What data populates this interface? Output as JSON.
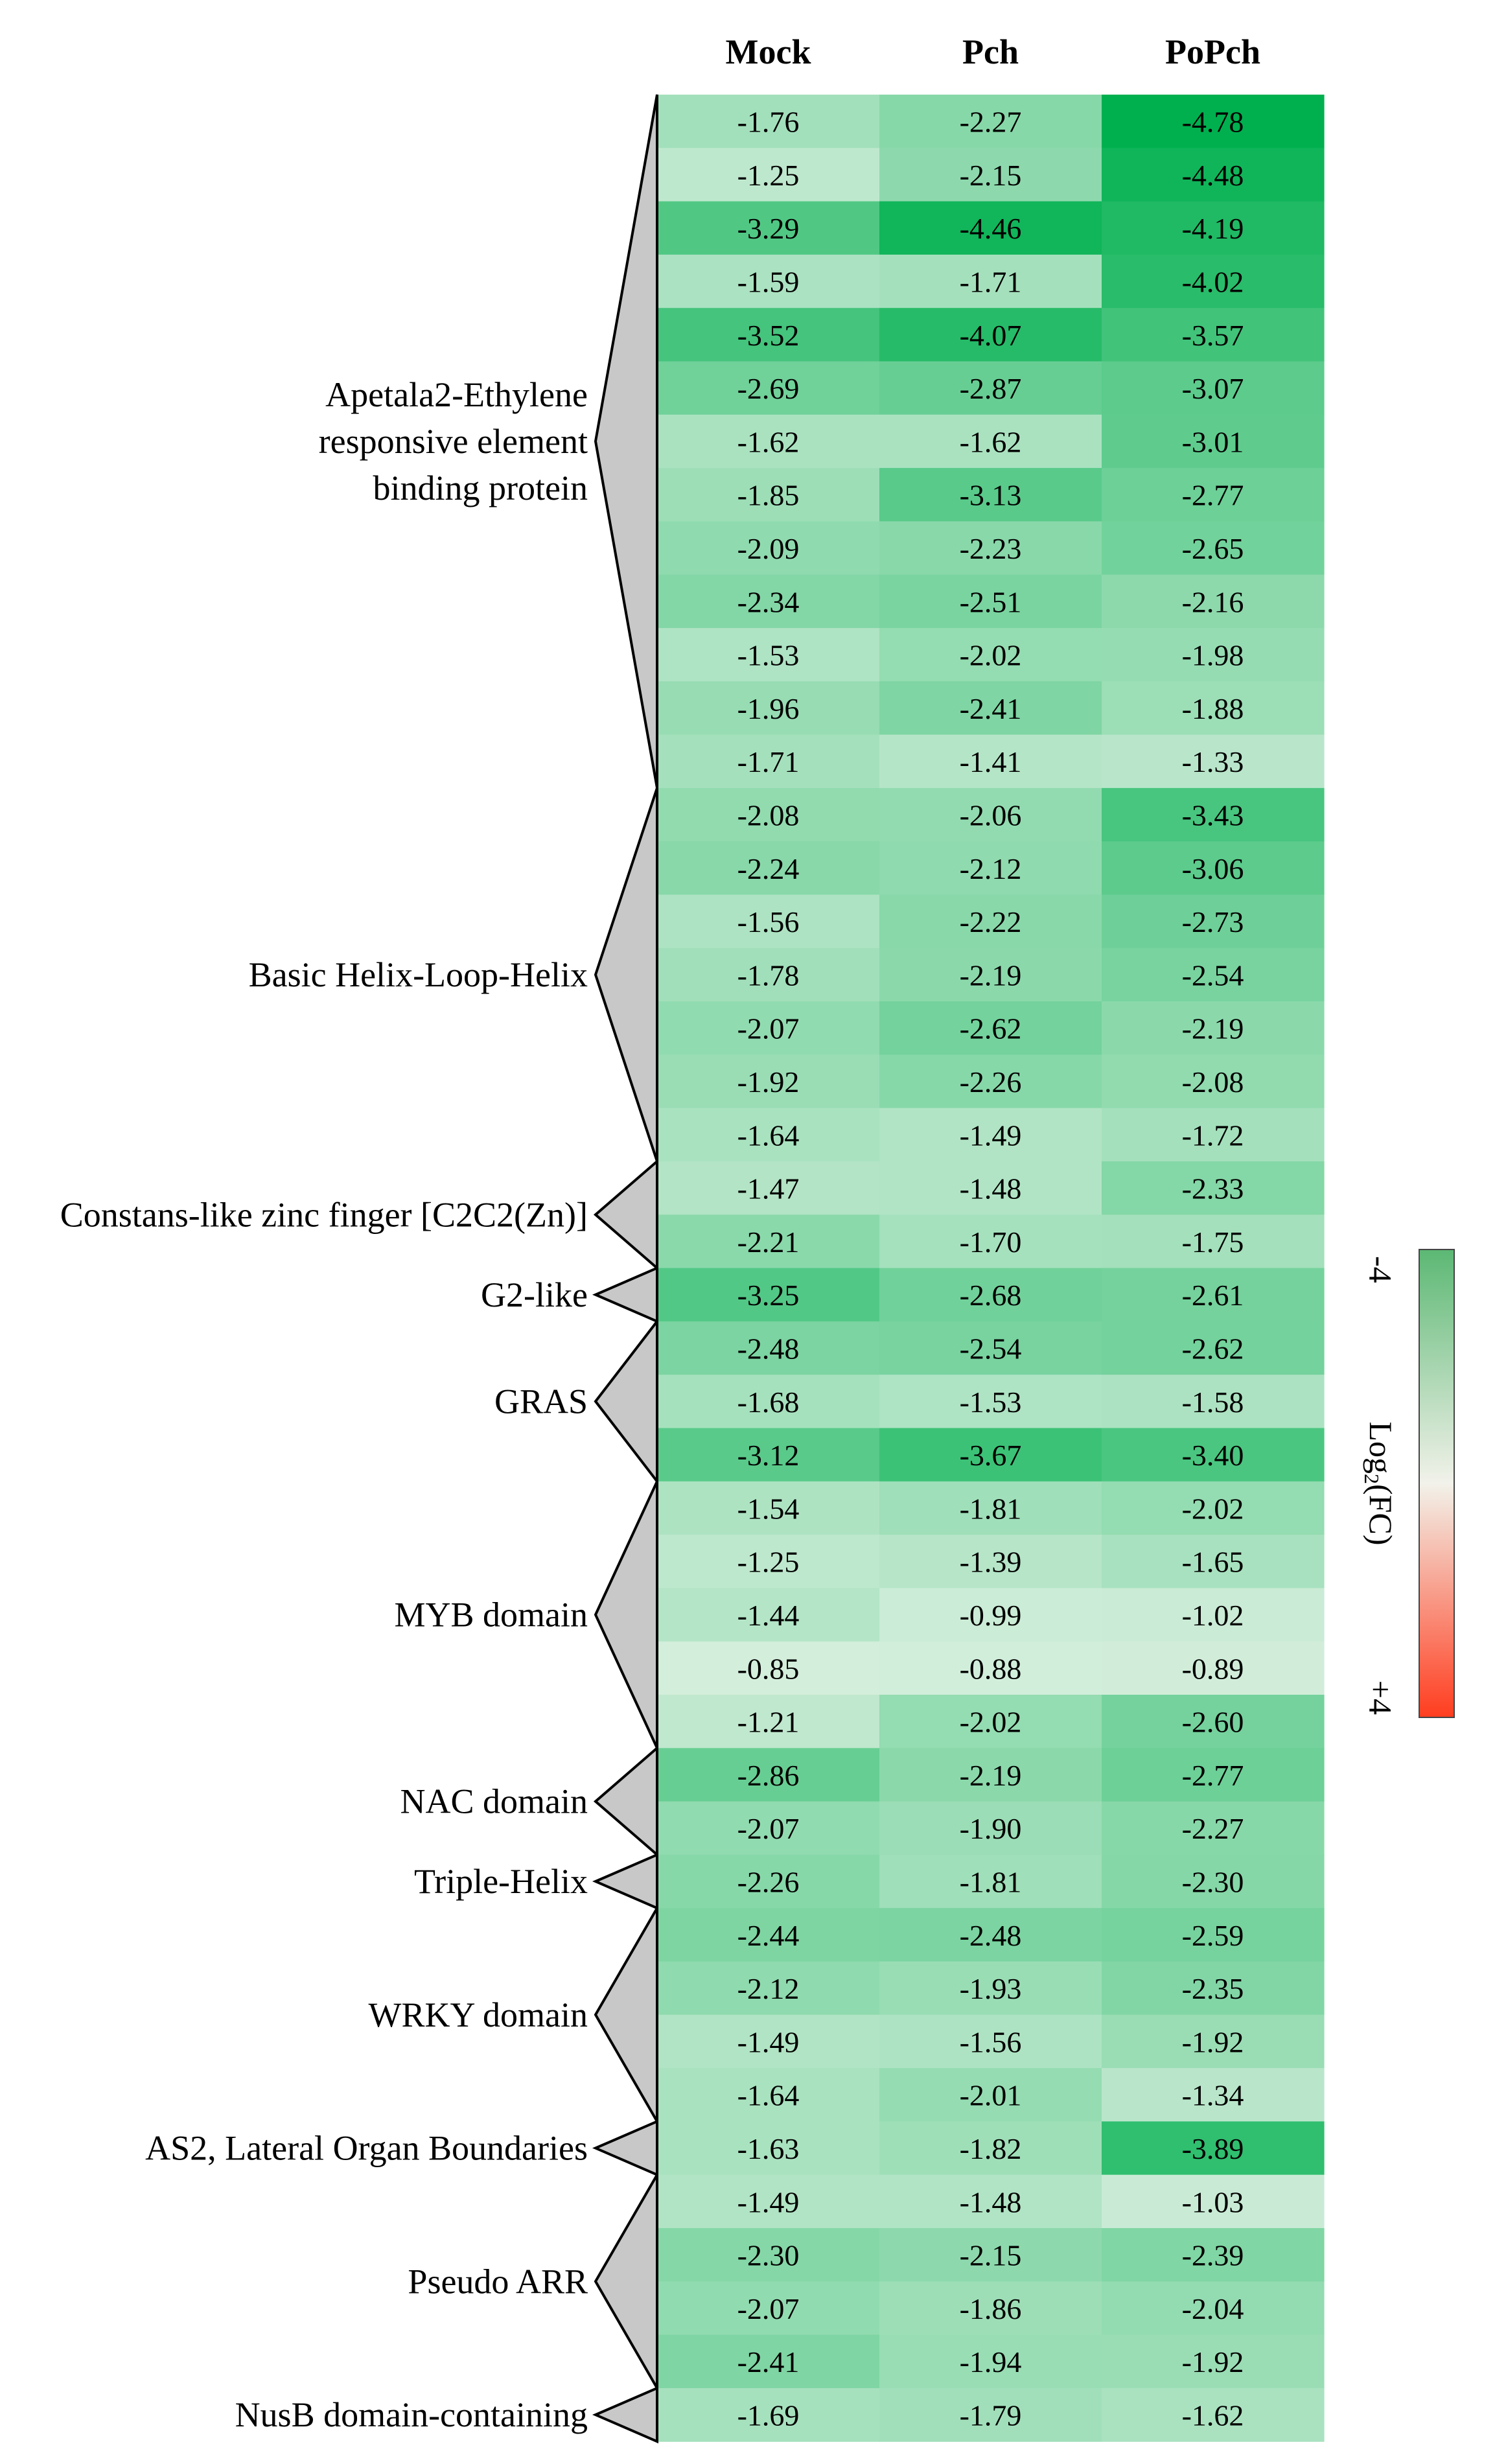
{
  "chart_data": {
    "type": "heatmap",
    "columns": [
      "Mock",
      "Pch",
      "PoPch"
    ],
    "rows": [
      [
        -1.76,
        -2.27,
        -4.78
      ],
      [
        -1.25,
        -2.15,
        -4.48
      ],
      [
        -3.29,
        -4.46,
        -4.19
      ],
      [
        -1.59,
        -1.71,
        -4.02
      ],
      [
        -3.52,
        -4.07,
        -3.57
      ],
      [
        -2.69,
        -2.87,
        -3.07
      ],
      [
        -1.62,
        -1.62,
        -3.01
      ],
      [
        -1.85,
        -3.13,
        -2.77
      ],
      [
        -2.09,
        -2.23,
        -2.65
      ],
      [
        -2.34,
        -2.51,
        -2.16
      ],
      [
        -1.53,
        -2.02,
        -1.98
      ],
      [
        -1.96,
        -2.41,
        -1.88
      ],
      [
        -1.71,
        -1.41,
        -1.33
      ],
      [
        -2.08,
        -2.06,
        -3.43
      ],
      [
        -2.24,
        -2.12,
        -3.06
      ],
      [
        -1.56,
        -2.22,
        -2.73
      ],
      [
        -1.78,
        -2.19,
        -2.54
      ],
      [
        -2.07,
        -2.62,
        -2.19
      ],
      [
        -1.92,
        -2.26,
        -2.08
      ],
      [
        -1.64,
        -1.49,
        -1.72
      ],
      [
        -1.47,
        -1.48,
        -2.33
      ],
      [
        -2.21,
        -1.7,
        -1.75
      ],
      [
        -3.25,
        -2.68,
        -2.61
      ],
      [
        -2.48,
        -2.54,
        -2.62
      ],
      [
        -1.68,
        -1.53,
        -1.58
      ],
      [
        -3.12,
        -3.67,
        -3.4
      ],
      [
        -1.54,
        -1.81,
        -2.02
      ],
      [
        -1.25,
        -1.39,
        -1.65
      ],
      [
        -1.44,
        -0.99,
        -1.02
      ],
      [
        -0.85,
        -0.88,
        -0.89
      ],
      [
        -1.21,
        -2.02,
        -2.6
      ],
      [
        -2.86,
        -2.19,
        -2.77
      ],
      [
        -2.07,
        -1.9,
        -2.27
      ],
      [
        -2.26,
        -1.81,
        -2.3
      ],
      [
        -2.44,
        -2.48,
        -2.59
      ],
      [
        -2.12,
        -1.93,
        -2.35
      ],
      [
        -1.49,
        -1.56,
        -1.92
      ],
      [
        -1.64,
        -2.01,
        -1.34
      ],
      [
        -1.63,
        -1.82,
        -3.89
      ],
      [
        -1.49,
        -1.48,
        -1.03
      ],
      [
        -2.3,
        -2.15,
        -2.39
      ],
      [
        -2.07,
        -1.86,
        -2.04
      ],
      [
        -2.41,
        -1.94,
        -1.92
      ],
      [
        -1.69,
        -1.79,
        -1.62
      ]
    ],
    "groups": [
      {
        "label": [
          "Apetala2-Ethylene",
          "responsive element",
          "binding protein"
        ],
        "start": 0,
        "end": 12
      },
      {
        "label": [
          "Basic Helix-Loop-Helix"
        ],
        "start": 13,
        "end": 19
      },
      {
        "label": [
          "Constans-like zinc finger [C2C2(Zn)]"
        ],
        "start": 20,
        "end": 21
      },
      {
        "label": [
          "G2-like"
        ],
        "start": 22,
        "end": 22
      },
      {
        "label": [
          "GRAS"
        ],
        "start": 23,
        "end": 25
      },
      {
        "label": [
          "MYB domain"
        ],
        "start": 26,
        "end": 30
      },
      {
        "label": [
          "NAC domain"
        ],
        "start": 31,
        "end": 32
      },
      {
        "label": [
          "Triple-Helix"
        ],
        "start": 33,
        "end": 33
      },
      {
        "label": [
          "WRKY domain"
        ],
        "start": 34,
        "end": 37
      },
      {
        "label": [
          "AS2, Lateral Organ Boundaries"
        ],
        "start": 38,
        "end": 38
      },
      {
        "label": [
          "Pseudo ARR"
        ],
        "start": 39,
        "end": 42
      },
      {
        "label": [
          "NusB domain-containing"
        ],
        "start": 43,
        "end": 43
      }
    ],
    "colorbar": {
      "min_label": "-4",
      "max_label": "+4",
      "title_base": "Log",
      "title_sub": "2",
      "title_rest": "(FC)"
    },
    "colors": {
      "low": "#00b04f",
      "light": "#d3eedb",
      "bar_low": "#5cb874",
      "bar_mid": "#f2f2ea",
      "bar_high": "#ff3d1f"
    }
  }
}
